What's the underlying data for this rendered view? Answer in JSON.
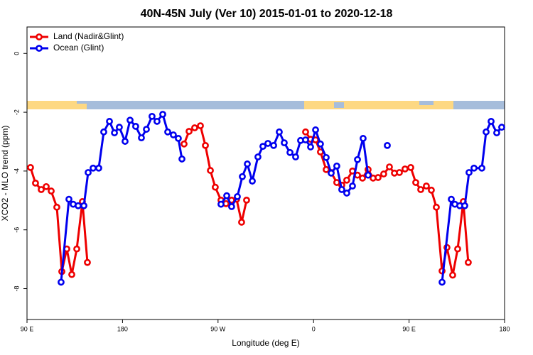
{
  "chart_data": {
    "type": "line",
    "title": "40N-45N July (Ver 10)   2015-01-01 to 2020-12-18",
    "xlabel": "Longitude (deg E)",
    "ylabel": "XCO2 - MLO trend (ppm)",
    "xlim": [
      90,
      540
    ],
    "ylim": [
      -9.05,
      0.9
    ],
    "xticks": [
      {
        "value": 90,
        "label": "90 E"
      },
      180,
      {
        "value": 270,
        "label": "90 W"
      },
      {
        "value": 360,
        "label": "0"
      },
      {
        "value": 450,
        "label": "90 E"
      },
      {
        "value": 540,
        "label": "180"
      }
    ],
    "yticks": [
      -8,
      -6,
      -4,
      -2,
      0
    ],
    "legend": "top-left",
    "series": [
      {
        "name": "Land (Nadir&Glint)",
        "color": "#ee0000",
        "x": [
          93.3,
          98.0,
          103.4,
          108.1,
          112.8,
          118.1,
          122.8,
          127.5,
          132.2,
          136.9,
          142.2,
          146.9,
          null,
          238.0,
          242.7,
          248.0,
          253.4,
          258.1,
          262.8,
          267.4,
          272.8,
          277.5,
          282.8,
          287.5,
          292.2,
          296.9,
          null,
          352.5,
          357.2,
          361.9,
          366.5,
          371.9,
          376.6,
          381.9,
          386.6,
          391.3,
          396.7,
          401.4,
          406.1,
          411.4,
          416.1,
          420.8,
          426.1,
          431.5,
          436.2,
          440.9,
          446.2,
          451.6,
          456.3,
          461.0,
          466.3,
          471.0,
          475.7,
          481.1,
          485.7,
          491.1,
          495.8,
          501.1,
          505.8
        ],
        "values": [
          -3.88,
          -4.41,
          -4.63,
          -4.53,
          -4.68,
          -5.23,
          -7.42,
          -6.65,
          -7.52,
          -6.65,
          -5.04,
          -7.11,
          null,
          -3.08,
          -2.65,
          -2.53,
          -2.46,
          -3.13,
          -3.98,
          -4.55,
          -4.99,
          -5.11,
          -4.99,
          -4.96,
          -5.74,
          -4.99,
          null,
          -2.67,
          -2.92,
          -2.94,
          -3.35,
          -3.95,
          -4.05,
          -4.39,
          -4.48,
          -4.31,
          -4.0,
          -4.14,
          -4.24,
          -3.95,
          -4.24,
          -4.22,
          -4.1,
          -3.86,
          -4.07,
          -4.05,
          -3.93,
          -3.88,
          -4.39,
          -4.63,
          -4.51,
          -4.65,
          -5.23,
          -7.4,
          -6.6,
          -7.54,
          -6.65,
          -5.04,
          -7.11
        ]
      },
      {
        "name": "Ocean (Glint)",
        "color": "#0000ee",
        "x": [
          122.1,
          129.5,
          133.5,
          138.2,
          143.6,
          147.6,
          152.3,
          157.6,
          162.3,
          167.7,
          172.4,
          177.0,
          182.4,
          187.1,
          192.4,
          197.8,
          202.5,
          207.8,
          212.5,
          217.9,
          222.6,
          227.9,
          232.6,
          236.0,
          null,
          272.8,
          278.2,
          282.8,
          288.2,
          292.9,
          297.6,
          302.3,
          307.6,
          312.3,
          317.0,
          322.4,
          327.7,
          332.4,
          337.8,
          343.1,
          347.8,
          352.5,
          357.2,
          361.9,
          366.5,
          371.9,
          376.6,
          381.9,
          386.6,
          391.3,
          396.7,
          401.4,
          406.7,
          411.4,
          null,
          429.5,
          null,
          481.1,
          489.8,
          493.2,
          497.8,
          502.5,
          506.5,
          511.2,
          518.6,
          522.6,
          527.3,
          532.6,
          537.3
        ],
        "values": [
          -7.78,
          -4.96,
          -5.13,
          -5.18,
          -5.18,
          -4.05,
          -3.9,
          -3.9,
          -2.67,
          -2.31,
          -2.7,
          -2.51,
          -2.99,
          -2.27,
          -2.48,
          -2.87,
          -2.58,
          -2.14,
          -2.31,
          -2.07,
          -2.67,
          -2.77,
          -2.89,
          -3.59,
          null,
          -5.13,
          -4.84,
          -5.21,
          -4.87,
          -4.19,
          -3.76,
          -4.34,
          -3.52,
          -3.16,
          -3.06,
          -3.13,
          -2.67,
          -3.04,
          -3.37,
          -3.52,
          -2.96,
          -2.94,
          -3.18,
          -2.6,
          -3.08,
          -3.54,
          -4.07,
          -3.83,
          -4.63,
          -4.75,
          -4.51,
          -3.61,
          -2.89,
          -4.14,
          null,
          -3.13,
          null,
          -7.78,
          -4.96,
          -5.13,
          -5.18,
          -5.18,
          -4.05,
          -3.9,
          -3.9,
          -2.67,
          -2.31,
          -2.7,
          -2.51
        ]
      }
    ]
  }
}
